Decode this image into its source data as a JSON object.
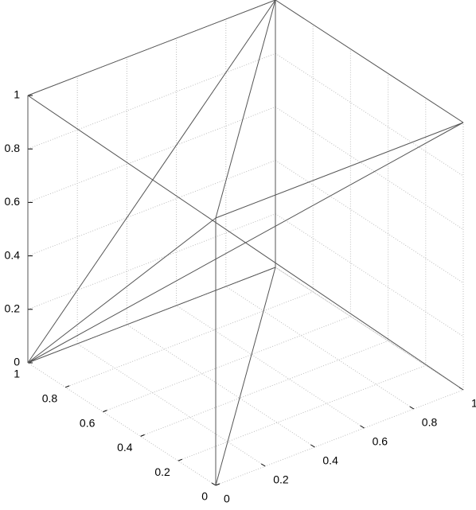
{
  "chart_data": {
    "type": "line3d",
    "xlim": [
      0,
      1
    ],
    "ylim": [
      0,
      1
    ],
    "zlim": [
      0,
      1
    ],
    "xticks": [
      0,
      0.2,
      0.4,
      0.6,
      0.8,
      1
    ],
    "yticks": [
      0,
      0.2,
      0.4,
      0.6,
      0.8,
      1
    ],
    "zticks": [
      0,
      0.2,
      0.4,
      0.6,
      0.8,
      1
    ],
    "grid": true,
    "color": "#555555",
    "segments": [
      {
        "x": [
          0,
          0
        ],
        "y": [
          1,
          1
        ],
        "z": [
          0,
          1
        ]
      },
      {
        "x": [
          0,
          1
        ],
        "y": [
          1,
          1
        ],
        "z": [
          1,
          1
        ]
      },
      {
        "x": [
          1,
          1
        ],
        "y": [
          1,
          0
        ],
        "z": [
          1,
          1
        ]
      },
      {
        "x": [
          1,
          1
        ],
        "y": [
          1,
          1
        ],
        "z": [
          0,
          1
        ]
      },
      {
        "x": [
          0,
          1
        ],
        "y": [
          1,
          0
        ],
        "z": [
          1,
          0
        ]
      },
      {
        "x": [
          0,
          1
        ],
        "y": [
          1,
          1
        ],
        "z": [
          0,
          1
        ]
      },
      {
        "x": [
          0,
          1
        ],
        "y": [
          1,
          0
        ],
        "z": [
          0,
          1
        ]
      },
      {
        "x": [
          0,
          0
        ],
        "y": [
          1,
          0
        ],
        "z": [
          0,
          1
        ]
      },
      {
        "x": [
          0,
          1
        ],
        "y": [
          1,
          1
        ],
        "z": [
          0,
          0
        ]
      },
      {
        "x": [
          0,
          0
        ],
        "y": [
          0,
          0
        ],
        "z": [
          0,
          1
        ]
      },
      {
        "x": [
          0,
          1
        ],
        "y": [
          0,
          1
        ],
        "z": [
          0,
          0
        ]
      },
      {
        "x": [
          0,
          1
        ],
        "y": [
          0,
          1
        ],
        "z": [
          1,
          1
        ]
      },
      {
        "x": [
          0,
          1
        ],
        "y": [
          0,
          0
        ],
        "z": [
          1,
          1
        ]
      }
    ]
  }
}
